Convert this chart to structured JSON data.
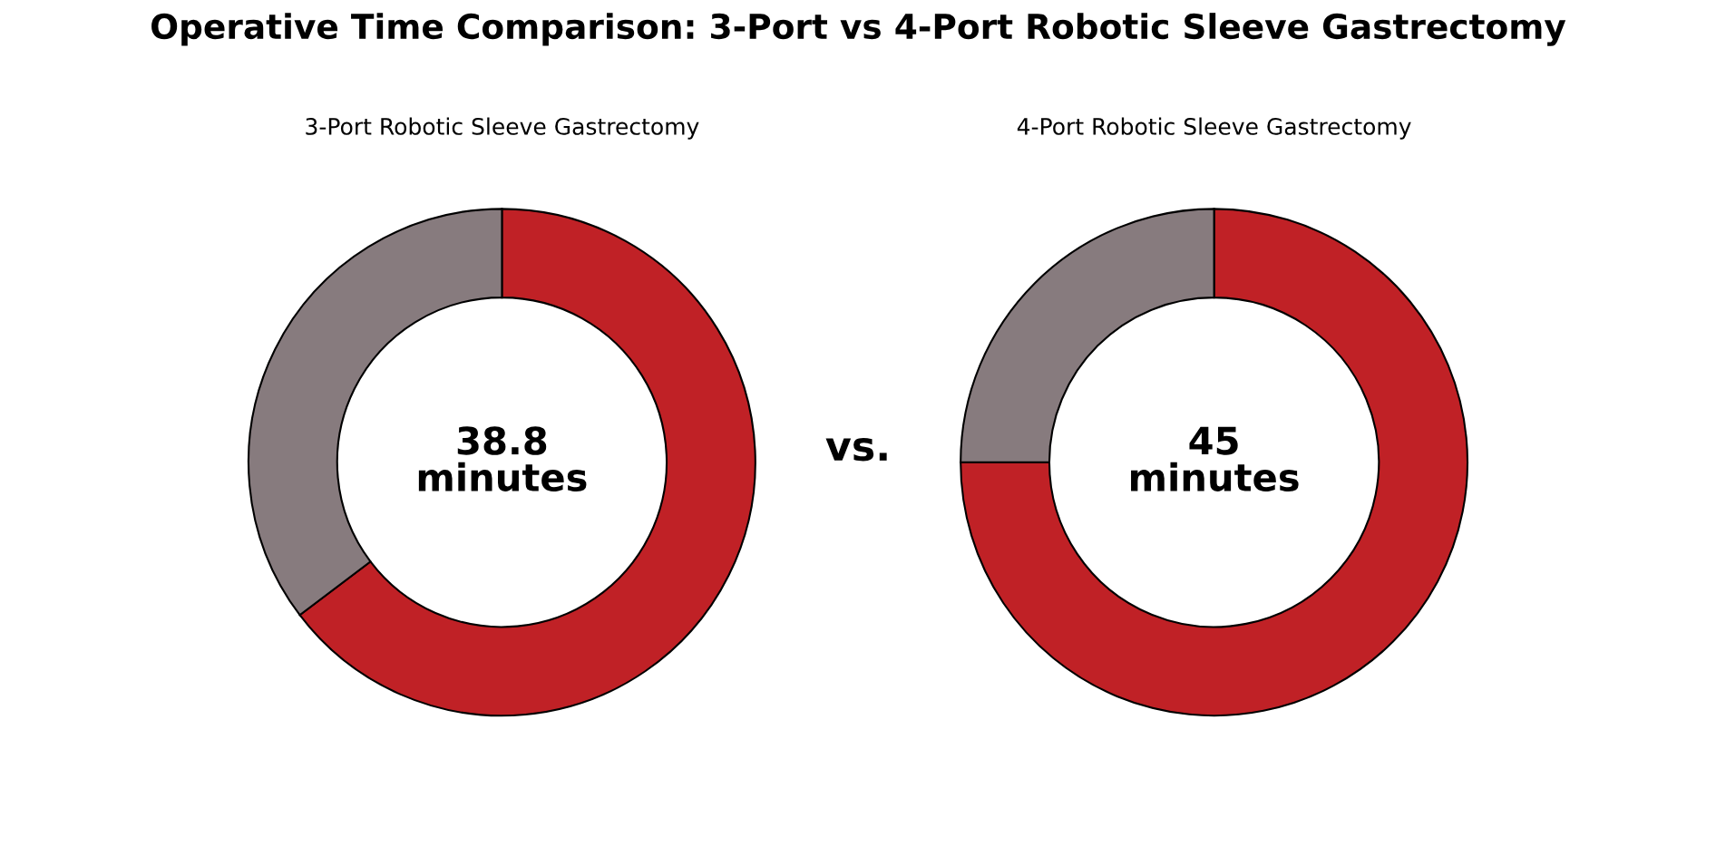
{
  "chart_data": [
    {
      "type": "donut",
      "title": "Operative Time Comparison: 3-Port vs 4-Port Robotic Sleeve Gastrectomy",
      "subtitle": "3-Port Robotic Sleeve Gastrectomy",
      "categories": [
        null,
        null
      ],
      "values": [
        64.7,
        35.3
      ],
      "colors": [
        "#c02126",
        "#877b7e"
      ],
      "annotations": [
        "38.8\nminutes",
        "vs."
      ],
      "legend": false
    },
    {
      "type": "donut",
      "subtitle": "4-Port Robotic Sleeve Gastrectomy",
      "categories": [
        null,
        null
      ],
      "values": [
        75,
        25
      ],
      "colors": [
        "#c02126",
        "#877b7e"
      ],
      "annotations": [
        "45\nminutes"
      ],
      "legend": false
    }
  ]
}
